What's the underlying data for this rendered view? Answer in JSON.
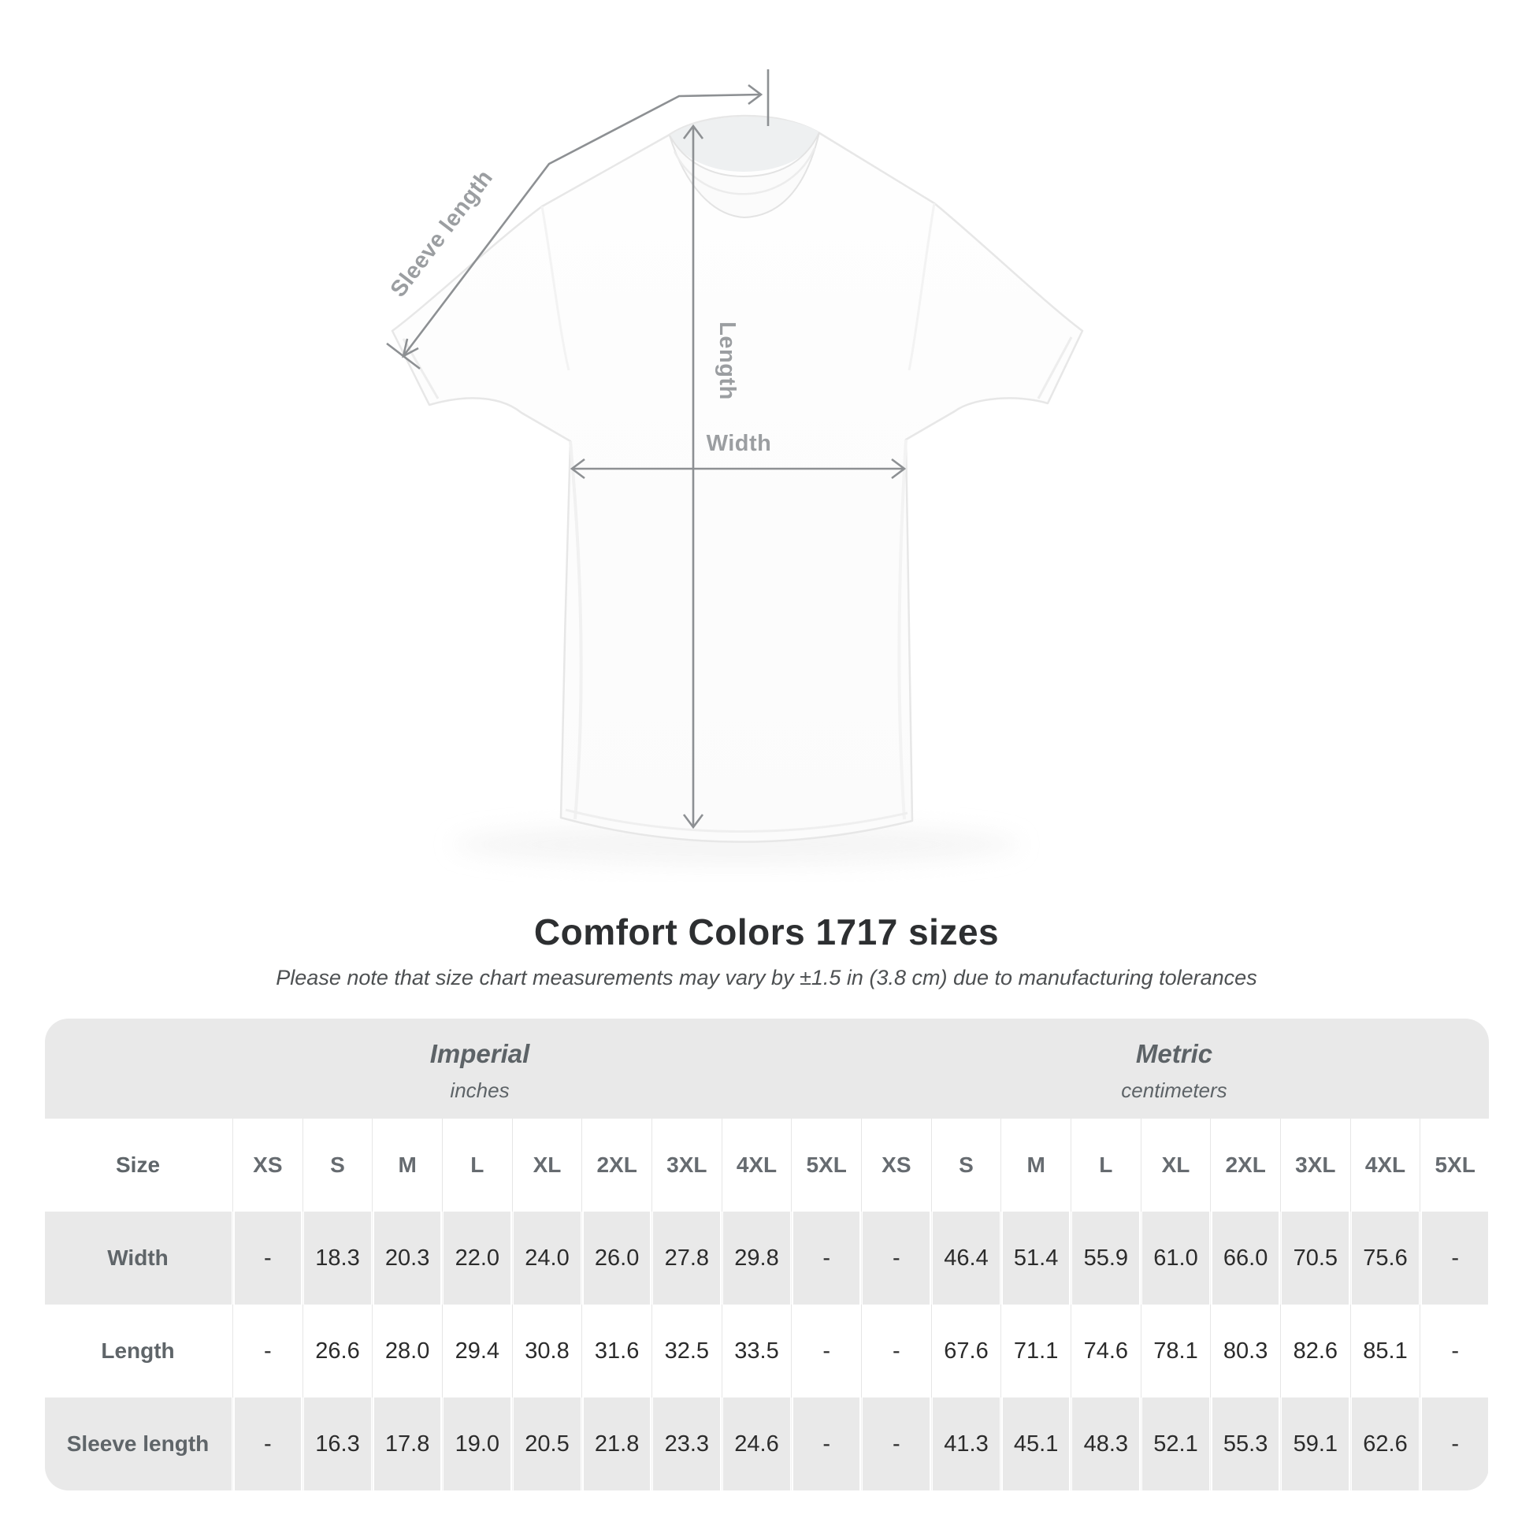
{
  "diagram": {
    "sleeve_label": "Sleeve length",
    "length_label": "Length",
    "width_label": "Width",
    "line_color": "#8d9093",
    "label_color": "#9b9ea1",
    "shirt_fill": "#fdfdfd",
    "shirt_outline": "#e7e7e7"
  },
  "heading": {
    "title": "Comfort Colors 1717 sizes",
    "subtitle": "Please note that size chart measurements may vary by ±1.5 in (3.8 cm) due to manufacturing tolerances"
  },
  "table": {
    "size_header_label": "Size",
    "unit_groups": [
      {
        "name": "Imperial",
        "unit": "inches"
      },
      {
        "name": "Metric",
        "unit": "centimeters"
      }
    ],
    "sizes": [
      "XS",
      "S",
      "M",
      "L",
      "XL",
      "2XL",
      "3XL",
      "4XL",
      "5XL"
    ],
    "rows": [
      {
        "label": "Width",
        "imperial": [
          "-",
          "18.3",
          "20.3",
          "22.0",
          "24.0",
          "26.0",
          "27.8",
          "29.8",
          "-"
        ],
        "metric": [
          "-",
          "46.4",
          "51.4",
          "55.9",
          "61.0",
          "66.0",
          "70.5",
          "75.6",
          "-"
        ]
      },
      {
        "label": "Length",
        "imperial": [
          "-",
          "26.6",
          "28.0",
          "29.4",
          "30.8",
          "31.6",
          "32.5",
          "33.5",
          "-"
        ],
        "metric": [
          "-",
          "67.6",
          "71.1",
          "74.6",
          "78.1",
          "80.3",
          "82.6",
          "85.1",
          "-"
        ]
      },
      {
        "label": "Sleeve length",
        "imperial": [
          "-",
          "16.3",
          "17.8",
          "19.0",
          "20.5",
          "21.8",
          "23.3",
          "24.6",
          "-"
        ],
        "metric": [
          "-",
          "41.3",
          "45.1",
          "48.3",
          "52.1",
          "55.3",
          "59.1",
          "62.6",
          "-"
        ]
      }
    ],
    "colors": {
      "band_bg": "#e9e9e9",
      "row_alt_bg": "#e9e9e9",
      "row_bg": "#ffffff",
      "header_text": "#666b70",
      "value_text": "#2b2b2b"
    }
  },
  "chart_data": {
    "type": "table",
    "title": "Comfort Colors 1717 sizes",
    "note": "Please note that size chart measurements may vary by ±1.5 in (3.8 cm) due to manufacturing tolerances",
    "columns": [
      "XS",
      "S",
      "M",
      "L",
      "XL",
      "2XL",
      "3XL",
      "4XL",
      "5XL"
    ],
    "imperial_unit": "inches",
    "metric_unit": "centimeters",
    "imperial": {
      "Width": [
        null,
        18.3,
        20.3,
        22.0,
        24.0,
        26.0,
        27.8,
        29.8,
        null
      ],
      "Length": [
        null,
        26.6,
        28.0,
        29.4,
        30.8,
        31.6,
        32.5,
        33.5,
        null
      ],
      "Sleeve length": [
        null,
        16.3,
        17.8,
        19.0,
        20.5,
        21.8,
        23.3,
        24.6,
        null
      ]
    },
    "metric": {
      "Width": [
        null,
        46.4,
        51.4,
        55.9,
        61.0,
        66.0,
        70.5,
        75.6,
        null
      ],
      "Length": [
        null,
        67.6,
        71.1,
        74.6,
        78.1,
        80.3,
        82.6,
        85.1,
        null
      ],
      "Sleeve length": [
        null,
        41.3,
        45.1,
        48.3,
        52.1,
        55.3,
        59.1,
        62.6,
        null
      ]
    }
  }
}
